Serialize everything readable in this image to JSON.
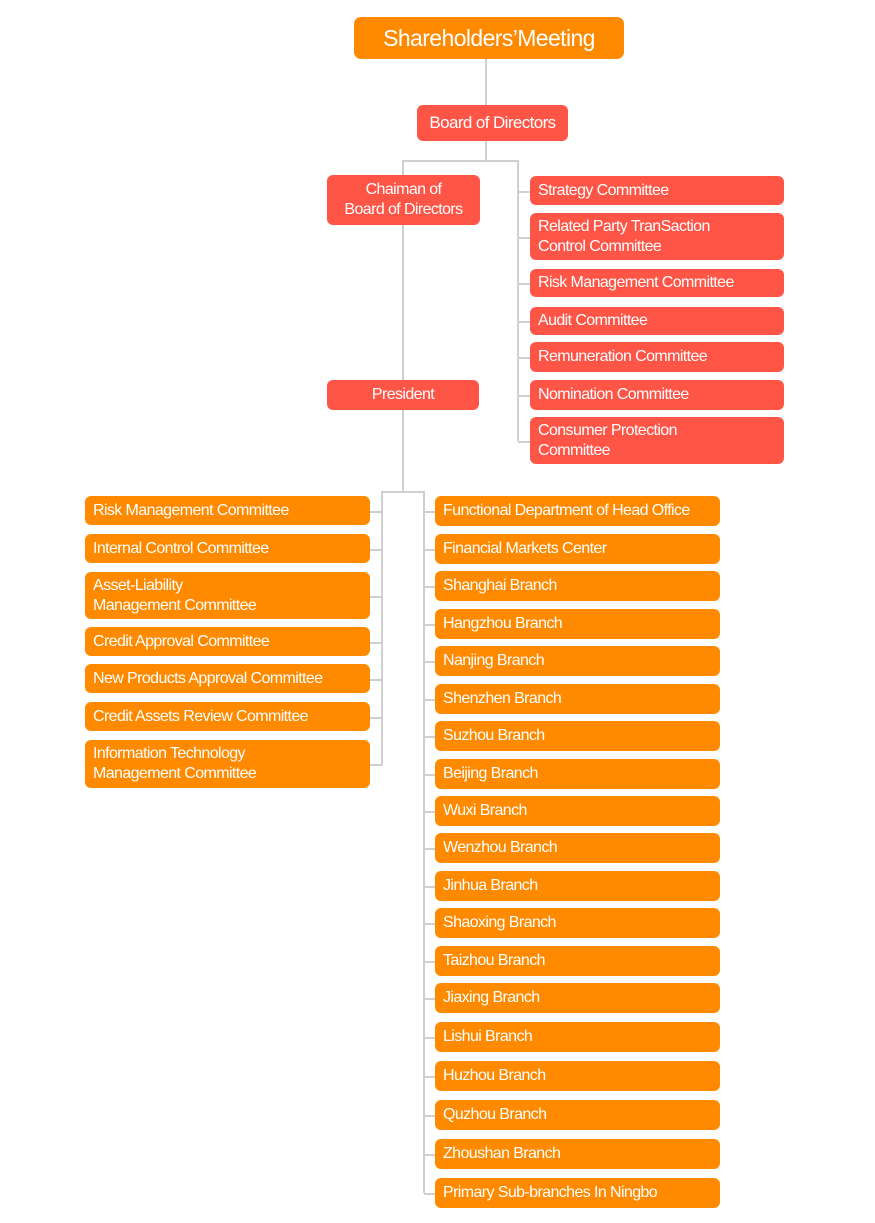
{
  "colors": {
    "orange": "#FF8A00",
    "red": "#FF5547",
    "connector": "#CFCFCF"
  },
  "top": {
    "shareholders": "Shareholders’Meeting",
    "board": "Board of Directors",
    "chairman": "Chaiman of\nBoard of Directors",
    "president": "President"
  },
  "board_committees": [
    "Strategy Committee",
    "Related Party TranSaction\nControl Committee",
    "Risk Management Committee",
    "Audit Committee",
    "Remuneration Committee",
    "Nomination Committee",
    "Consumer Protection\nCommittee"
  ],
  "management_committees": [
    "Risk Management Committee",
    "Internal Control Committee",
    "Asset-Liability\nManagement Committee",
    "Credit  Approval Committee",
    "New Products Approval Committee",
    "Credit  Assets Review Committee",
    "Information Technology\nManagement Committee"
  ],
  "branches": [
    "Functional Department of Head Office",
    "Financial Markets Center",
    "Shanghai Branch",
    "Hangzhou Branch",
    "Nanjing Branch",
    "Shenzhen Branch",
    "Suzhou Branch",
    "Beijing Branch",
    "Wuxi Branch",
    "Wenzhou Branch",
    "Jinhua Branch",
    "Shaoxing Branch",
    "Taizhou Branch",
    "Jiaxing Branch",
    "Lishui Branch",
    "Huzhou Branch",
    "Quzhou Branch",
    "Zhoushan Branch",
    "Primary Sub-branches In Ningbo"
  ]
}
